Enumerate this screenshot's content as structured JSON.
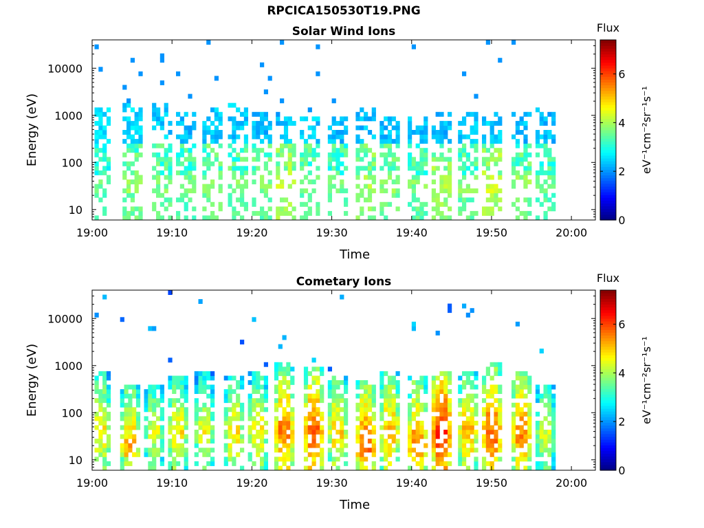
{
  "figure": {
    "title": "RPCICA150530T19.PNG"
  },
  "colors": {
    "colormap": [
      "#00007f",
      "#0000ff",
      "#007fff",
      "#00ffff",
      "#7fff7f",
      "#ffff00",
      "#ff7f00",
      "#ff0000",
      "#7f0000"
    ]
  },
  "chart_data": [
    {
      "type": "heatmap",
      "title": "Solar Wind Ions",
      "xlabel": "Time",
      "ylabel": "Energy (eV)",
      "x_tick_labels": [
        "19:00",
        "19:10",
        "19:20",
        "19:30",
        "19:40",
        "19:50",
        "20:00"
      ],
      "x_ticks_min": [
        0,
        10,
        20,
        30,
        40,
        50,
        60
      ],
      "xlim_min": [
        0,
        63
      ],
      "y_tick_labels": [
        "10",
        "100",
        "1000",
        "10000"
      ],
      "y_ticks": [
        10,
        100,
        1000,
        10000
      ],
      "ylim": [
        6,
        40000
      ],
      "y_scale": "log",
      "colorbar": {
        "label": "Flux",
        "units": "eV⁻¹cm⁻²sr⁻¹s⁻¹",
        "ticks": [
          "0",
          "2",
          "4",
          "6"
        ],
        "range": [
          0,
          7.4
        ]
      },
      "bursts": [
        {
          "t": 0.8,
          "flux_low": 3.2,
          "flux_high": 2.2,
          "e_top": 1400
        },
        {
          "t": 4.8,
          "flux_low": 3.5,
          "flux_high": 2.2,
          "e_top": 1500
        },
        {
          "t": 8.5,
          "flux_low": 3.4,
          "flux_high": 2.1,
          "e_top": 1500
        },
        {
          "t": 11.5,
          "flux_low": 3.3,
          "flux_high": 2.0,
          "e_top": 1000
        },
        {
          "t": 14.8,
          "flux_low": 3.5,
          "flux_high": 2.1,
          "e_top": 1400
        },
        {
          "t": 18.0,
          "flux_low": 3.4,
          "flux_high": 2.1,
          "e_top": 1500
        },
        {
          "t": 21.0,
          "flux_low": 3.4,
          "flux_high": 2.0,
          "e_top": 1000
        },
        {
          "t": 24.0,
          "flux_low": 3.9,
          "flux_high": 2.0,
          "e_top": 900
        },
        {
          "t": 27.0,
          "flux_low": 3.4,
          "flux_high": 2.1,
          "e_top": 800
        },
        {
          "t": 30.5,
          "flux_low": 3.3,
          "flux_high": 2.0,
          "e_top": 900
        },
        {
          "t": 34.0,
          "flux_low": 3.7,
          "flux_high": 2.0,
          "e_top": 1400
        },
        {
          "t": 37.0,
          "flux_low": 3.5,
          "flux_high": 2.0,
          "e_top": 900
        },
        {
          "t": 40.5,
          "flux_low": 3.4,
          "flux_high": 2.0,
          "e_top": 900
        },
        {
          "t": 43.5,
          "flux_low": 3.8,
          "flux_high": 2.0,
          "e_top": 1000
        },
        {
          "t": 46.8,
          "flux_low": 3.4,
          "flux_high": 2.0,
          "e_top": 1000
        },
        {
          "t": 49.8,
          "flux_low": 3.9,
          "flux_high": 2.1,
          "e_top": 1000
        },
        {
          "t": 53.5,
          "flux_low": 3.5,
          "flux_high": 2.0,
          "e_top": 1000
        },
        {
          "t": 56.5,
          "flux_low": 3.3,
          "flux_high": 2.0,
          "e_top": 1400
        }
      ]
    },
    {
      "type": "heatmap",
      "title": "Cometary Ions",
      "xlabel": "Time",
      "ylabel": "Energy (eV)",
      "x_tick_labels": [
        "19:00",
        "19:10",
        "19:20",
        "19:30",
        "19:40",
        "19:50",
        "20:00"
      ],
      "x_ticks_min": [
        0,
        10,
        20,
        30,
        40,
        50,
        60
      ],
      "xlim_min": [
        0,
        63
      ],
      "y_tick_labels": [
        "10",
        "100",
        "1000",
        "10000"
      ],
      "y_ticks": [
        10,
        100,
        1000,
        10000
      ],
      "ylim": [
        6,
        40000
      ],
      "y_scale": "log",
      "colorbar": {
        "label": "Flux",
        "units": "eV⁻¹cm⁻²sr⁻¹s⁻¹",
        "ticks": [
          "0",
          "2",
          "4",
          "6"
        ],
        "range": [
          0,
          7.4
        ]
      },
      "bursts": [
        {
          "t": 0.8,
          "peak_flux": 5.2,
          "e_peak": 40,
          "e_top": 600
        },
        {
          "t": 4.5,
          "peak_flux": 5.6,
          "e_peak": 20,
          "e_top": 300
        },
        {
          "t": 7.5,
          "peak_flux": 4.8,
          "e_peak": 40,
          "e_top": 300
        },
        {
          "t": 10.5,
          "peak_flux": 5.2,
          "e_peak": 40,
          "e_top": 500
        },
        {
          "t": 13.8,
          "peak_flux": 5.0,
          "e_peak": 40,
          "e_top": 600
        },
        {
          "t": 17.5,
          "peak_flux": 5.2,
          "e_peak": 40,
          "e_top": 500
        },
        {
          "t": 20.5,
          "peak_flux": 5.2,
          "e_peak": 40,
          "e_top": 600
        },
        {
          "t": 23.8,
          "peak_flux": 6.0,
          "e_peak": 40,
          "e_top": 900
        },
        {
          "t": 27.5,
          "peak_flux": 6.2,
          "e_peak": 40,
          "e_top": 800
        },
        {
          "t": 30.5,
          "peak_flux": 5.4,
          "e_peak": 40,
          "e_top": 500
        },
        {
          "t": 34.0,
          "peak_flux": 6.2,
          "e_peak": 20,
          "e_top": 400
        },
        {
          "t": 37.0,
          "peak_flux": 5.6,
          "e_peak": 40,
          "e_top": 600
        },
        {
          "t": 40.5,
          "peak_flux": 6.0,
          "e_peak": 20,
          "e_top": 500
        },
        {
          "t": 43.5,
          "peak_flux": 6.6,
          "e_peak": 40,
          "e_top": 700
        },
        {
          "t": 46.8,
          "peak_flux": 5.6,
          "e_peak": 40,
          "e_top": 600
        },
        {
          "t": 49.8,
          "peak_flux": 6.2,
          "e_peak": 40,
          "e_top": 900
        },
        {
          "t": 53.5,
          "peak_flux": 6.0,
          "e_peak": 40,
          "e_top": 700
        },
        {
          "t": 56.5,
          "peak_flux": 4.8,
          "e_peak": 40,
          "e_top": 300
        }
      ]
    }
  ]
}
